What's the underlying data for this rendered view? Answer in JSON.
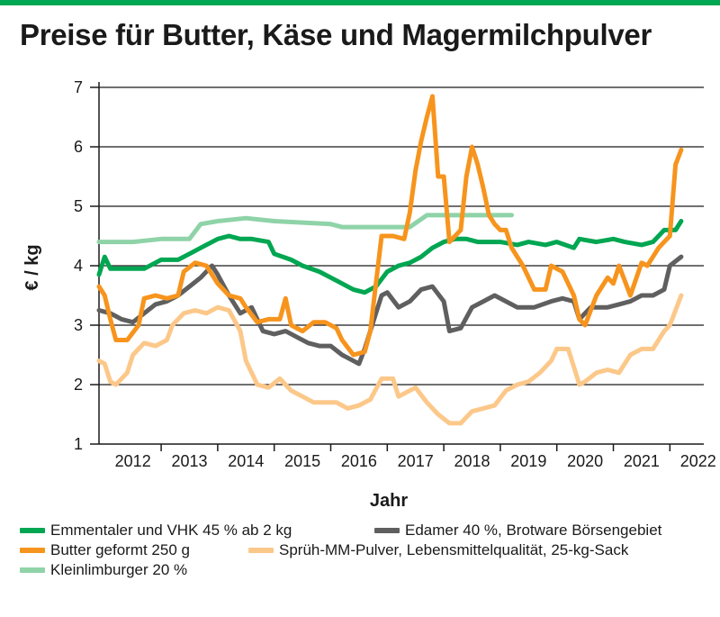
{
  "title": "Preise für Butter, Käse und Magermilchpulver",
  "chart_data": {
    "type": "line",
    "xlabel": "Jahr",
    "ylabel": "€ / kg",
    "ylim": [
      1,
      7
    ],
    "xlim": [
      2011.9,
      2022.6
    ],
    "yticks": [
      1,
      2,
      3,
      4,
      5,
      6,
      7
    ],
    "xtick_labels": [
      "2012",
      "2013",
      "2014",
      "2015",
      "2016",
      "2017",
      "2018",
      "2019",
      "2020",
      "2021",
      "2022"
    ],
    "grid": true,
    "legend_position": "bottom",
    "series": [
      {
        "name": "Emmentaler und VHK 45 % ab 2 kg",
        "color": "#00a651",
        "points": [
          [
            2011.9,
            3.85
          ],
          [
            2012.0,
            4.15
          ],
          [
            2012.1,
            3.95
          ],
          [
            2012.3,
            3.95
          ],
          [
            2012.5,
            3.95
          ],
          [
            2012.7,
            3.95
          ],
          [
            2012.9,
            4.05
          ],
          [
            2013.0,
            4.1
          ],
          [
            2013.3,
            4.1
          ],
          [
            2013.5,
            4.2
          ],
          [
            2013.7,
            4.3
          ],
          [
            2014.0,
            4.45
          ],
          [
            2014.2,
            4.5
          ],
          [
            2014.4,
            4.45
          ],
          [
            2014.6,
            4.45
          ],
          [
            2014.9,
            4.4
          ],
          [
            2015.0,
            4.2
          ],
          [
            2015.3,
            4.1
          ],
          [
            2015.5,
            4.0
          ],
          [
            2015.8,
            3.9
          ],
          [
            2016.0,
            3.8
          ],
          [
            2016.2,
            3.7
          ],
          [
            2016.4,
            3.6
          ],
          [
            2016.6,
            3.55
          ],
          [
            2016.8,
            3.65
          ],
          [
            2017.0,
            3.9
          ],
          [
            2017.2,
            4.0
          ],
          [
            2017.4,
            4.05
          ],
          [
            2017.6,
            4.15
          ],
          [
            2017.8,
            4.3
          ],
          [
            2018.0,
            4.4
          ],
          [
            2018.2,
            4.45
          ],
          [
            2018.4,
            4.45
          ],
          [
            2018.6,
            4.4
          ],
          [
            2018.8,
            4.4
          ],
          [
            2019.0,
            4.4
          ],
          [
            2019.3,
            4.35
          ],
          [
            2019.5,
            4.4
          ],
          [
            2019.8,
            4.35
          ],
          [
            2020.0,
            4.4
          ],
          [
            2020.3,
            4.3
          ],
          [
            2020.4,
            4.45
          ],
          [
            2020.7,
            4.4
          ],
          [
            2021.0,
            4.45
          ],
          [
            2021.2,
            4.4
          ],
          [
            2021.5,
            4.35
          ],
          [
            2021.7,
            4.4
          ],
          [
            2021.9,
            4.6
          ],
          [
            2022.1,
            4.6
          ],
          [
            2022.2,
            4.75
          ]
        ]
      },
      {
        "name": "Edamer 40 %, Brotware Börsengebiet",
        "color": "#5f5f5f",
        "points": [
          [
            2011.9,
            3.25
          ],
          [
            2012.1,
            3.2
          ],
          [
            2012.3,
            3.1
          ],
          [
            2012.5,
            3.05
          ],
          [
            2012.7,
            3.2
          ],
          [
            2012.9,
            3.35
          ],
          [
            2013.1,
            3.4
          ],
          [
            2013.3,
            3.5
          ],
          [
            2013.5,
            3.65
          ],
          [
            2013.7,
            3.8
          ],
          [
            2013.9,
            4.0
          ],
          [
            2014.0,
            3.85
          ],
          [
            2014.2,
            3.5
          ],
          [
            2014.4,
            3.2
          ],
          [
            2014.6,
            3.3
          ],
          [
            2014.8,
            2.9
          ],
          [
            2015.0,
            2.85
          ],
          [
            2015.2,
            2.9
          ],
          [
            2015.4,
            2.8
          ],
          [
            2015.6,
            2.7
          ],
          [
            2015.8,
            2.65
          ],
          [
            2016.0,
            2.65
          ],
          [
            2016.2,
            2.5
          ],
          [
            2016.4,
            2.4
          ],
          [
            2016.5,
            2.35
          ],
          [
            2016.6,
            2.6
          ],
          [
            2016.8,
            3.2
          ],
          [
            2016.9,
            3.5
          ],
          [
            2017.0,
            3.55
          ],
          [
            2017.2,
            3.3
          ],
          [
            2017.4,
            3.4
          ],
          [
            2017.6,
            3.6
          ],
          [
            2017.8,
            3.65
          ],
          [
            2018.0,
            3.4
          ],
          [
            2018.1,
            2.9
          ],
          [
            2018.3,
            2.95
          ],
          [
            2018.5,
            3.3
          ],
          [
            2018.7,
            3.4
          ],
          [
            2018.9,
            3.5
          ],
          [
            2019.1,
            3.4
          ],
          [
            2019.3,
            3.3
          ],
          [
            2019.6,
            3.3
          ],
          [
            2019.9,
            3.4
          ],
          [
            2020.1,
            3.45
          ],
          [
            2020.3,
            3.4
          ],
          [
            2020.4,
            3.1
          ],
          [
            2020.6,
            3.3
          ],
          [
            2020.9,
            3.3
          ],
          [
            2021.1,
            3.35
          ],
          [
            2021.3,
            3.4
          ],
          [
            2021.5,
            3.5
          ],
          [
            2021.7,
            3.5
          ],
          [
            2021.9,
            3.6
          ],
          [
            2022.0,
            4.0
          ],
          [
            2022.2,
            4.15
          ]
        ]
      },
      {
        "name": "Butter geformt 250 g",
        "color": "#f7941d",
        "points": [
          [
            2011.9,
            3.65
          ],
          [
            2012.0,
            3.5
          ],
          [
            2012.1,
            3.1
          ],
          [
            2012.2,
            2.75
          ],
          [
            2012.4,
            2.75
          ],
          [
            2012.6,
            3.0
          ],
          [
            2012.7,
            3.45
          ],
          [
            2012.9,
            3.5
          ],
          [
            2013.1,
            3.45
          ],
          [
            2013.3,
            3.5
          ],
          [
            2013.4,
            3.9
          ],
          [
            2013.6,
            4.05
          ],
          [
            2013.8,
            4.0
          ],
          [
            2014.0,
            3.7
          ],
          [
            2014.2,
            3.5
          ],
          [
            2014.4,
            3.45
          ],
          [
            2014.5,
            3.3
          ],
          [
            2014.7,
            3.05
          ],
          [
            2014.9,
            3.1
          ],
          [
            2015.1,
            3.1
          ],
          [
            2015.2,
            3.45
          ],
          [
            2015.3,
            3.0
          ],
          [
            2015.5,
            2.9
          ],
          [
            2015.7,
            3.05
          ],
          [
            2015.9,
            3.05
          ],
          [
            2016.1,
            2.95
          ],
          [
            2016.2,
            2.75
          ],
          [
            2016.4,
            2.5
          ],
          [
            2016.6,
            2.55
          ],
          [
            2016.7,
            2.9
          ],
          [
            2016.8,
            3.7
          ],
          [
            2016.9,
            4.5
          ],
          [
            2017.1,
            4.5
          ],
          [
            2017.3,
            4.45
          ],
          [
            2017.4,
            4.9
          ],
          [
            2017.5,
            5.6
          ],
          [
            2017.6,
            6.1
          ],
          [
            2017.7,
            6.5
          ],
          [
            2017.8,
            6.85
          ],
          [
            2017.9,
            5.5
          ],
          [
            2018.0,
            5.5
          ],
          [
            2018.1,
            4.4
          ],
          [
            2018.3,
            4.6
          ],
          [
            2018.4,
            5.5
          ],
          [
            2018.5,
            6.0
          ],
          [
            2018.6,
            5.7
          ],
          [
            2018.7,
            5.3
          ],
          [
            2018.8,
            4.85
          ],
          [
            2018.9,
            4.7
          ],
          [
            2019.0,
            4.6
          ],
          [
            2019.1,
            4.6
          ],
          [
            2019.2,
            4.3
          ],
          [
            2019.4,
            4.0
          ],
          [
            2019.6,
            3.6
          ],
          [
            2019.8,
            3.6
          ],
          [
            2019.9,
            4.0
          ],
          [
            2020.1,
            3.9
          ],
          [
            2020.3,
            3.5
          ],
          [
            2020.4,
            3.1
          ],
          [
            2020.5,
            3.0
          ],
          [
            2020.7,
            3.5
          ],
          [
            2020.9,
            3.8
          ],
          [
            2021.0,
            3.7
          ],
          [
            2021.1,
            4.0
          ],
          [
            2021.3,
            3.5
          ],
          [
            2021.5,
            4.05
          ],
          [
            2021.6,
            4.0
          ],
          [
            2021.8,
            4.3
          ],
          [
            2021.9,
            4.4
          ],
          [
            2022.0,
            4.5
          ],
          [
            2022.1,
            5.7
          ],
          [
            2022.2,
            5.95
          ]
        ]
      },
      {
        "name": "Sprüh-MM-Pulver, Lebensmittelqualität, 25-kg-Sack",
        "color": "#fcc88a",
        "points": [
          [
            2011.9,
            2.4
          ],
          [
            2012.0,
            2.35
          ],
          [
            2012.1,
            2.05
          ],
          [
            2012.2,
            2.0
          ],
          [
            2012.4,
            2.2
          ],
          [
            2012.5,
            2.5
          ],
          [
            2012.7,
            2.7
          ],
          [
            2012.9,
            2.65
          ],
          [
            2013.0,
            2.7
          ],
          [
            2013.1,
            2.75
          ],
          [
            2013.2,
            3.0
          ],
          [
            2013.4,
            3.2
          ],
          [
            2013.6,
            3.25
          ],
          [
            2013.8,
            3.2
          ],
          [
            2014.0,
            3.3
          ],
          [
            2014.2,
            3.25
          ],
          [
            2014.4,
            2.9
          ],
          [
            2014.5,
            2.4
          ],
          [
            2014.7,
            2.0
          ],
          [
            2014.9,
            1.95
          ],
          [
            2015.1,
            2.1
          ],
          [
            2015.3,
            1.9
          ],
          [
            2015.5,
            1.8
          ],
          [
            2015.7,
            1.7
          ],
          [
            2015.9,
            1.7
          ],
          [
            2016.1,
            1.7
          ],
          [
            2016.3,
            1.6
          ],
          [
            2016.5,
            1.65
          ],
          [
            2016.7,
            1.75
          ],
          [
            2016.9,
            2.1
          ],
          [
            2017.1,
            2.1
          ],
          [
            2017.2,
            1.8
          ],
          [
            2017.4,
            1.9
          ],
          [
            2017.5,
            1.95
          ],
          [
            2017.7,
            1.7
          ],
          [
            2017.9,
            1.5
          ],
          [
            2018.1,
            1.35
          ],
          [
            2018.3,
            1.35
          ],
          [
            2018.5,
            1.55
          ],
          [
            2018.7,
            1.6
          ],
          [
            2018.9,
            1.65
          ],
          [
            2019.1,
            1.9
          ],
          [
            2019.3,
            2.0
          ],
          [
            2019.5,
            2.05
          ],
          [
            2019.7,
            2.2
          ],
          [
            2019.9,
            2.4
          ],
          [
            2020.0,
            2.6
          ],
          [
            2020.2,
            2.6
          ],
          [
            2020.3,
            2.3
          ],
          [
            2020.4,
            2.0
          ],
          [
            2020.5,
            2.05
          ],
          [
            2020.7,
            2.2
          ],
          [
            2020.9,
            2.25
          ],
          [
            2021.1,
            2.2
          ],
          [
            2021.3,
            2.5
          ],
          [
            2021.5,
            2.6
          ],
          [
            2021.7,
            2.6
          ],
          [
            2021.9,
            2.9
          ],
          [
            2022.0,
            3.0
          ],
          [
            2022.2,
            3.5
          ]
        ]
      },
      {
        "name": "Kleinlimburger 20 %",
        "color": "#8fd3a8",
        "points": [
          [
            2011.9,
            4.4
          ],
          [
            2012.5,
            4.4
          ],
          [
            2013.0,
            4.45
          ],
          [
            2013.5,
            4.45
          ],
          [
            2013.7,
            4.7
          ],
          [
            2014.0,
            4.75
          ],
          [
            2014.5,
            4.8
          ],
          [
            2015.0,
            4.75
          ],
          [
            2016.0,
            4.7
          ],
          [
            2016.2,
            4.65
          ],
          [
            2017.0,
            4.65
          ],
          [
            2017.4,
            4.65
          ],
          [
            2017.7,
            4.85
          ],
          [
            2018.3,
            4.85
          ],
          [
            2018.7,
            4.85
          ],
          [
            2019.2,
            4.85
          ]
        ]
      }
    ]
  }
}
